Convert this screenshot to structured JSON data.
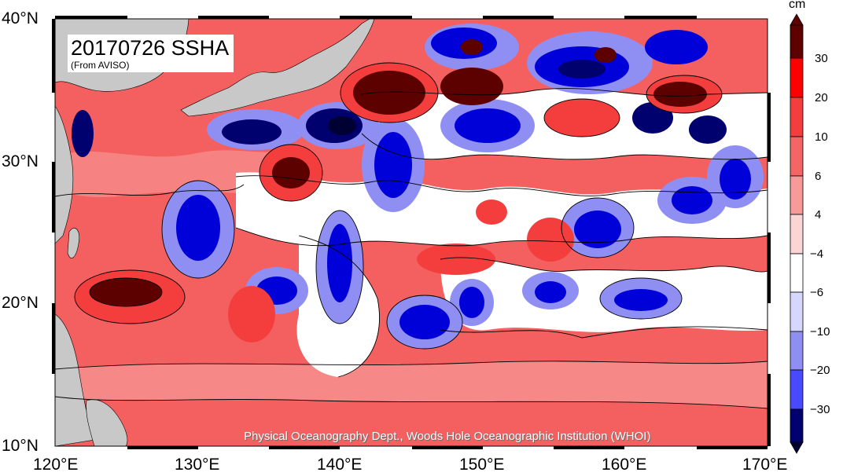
{
  "map": {
    "title": "20170726 SSHA",
    "source": "(From AVISO)",
    "credit": "Physical Oceanography Dept., Woods Hole Oceanographic Institution (WHOI)",
    "lat_labels": [
      "40°N",
      "30°N",
      "20°N",
      "10°N"
    ],
    "lon_labels": [
      "120°E",
      "130°E",
      "140°E",
      "150°E",
      "160°E",
      "170°E"
    ],
    "lon_range": [
      120,
      170
    ],
    "lat_range": [
      10,
      40
    ],
    "land_color": "#c8c8c8",
    "ocean_background_color": "#f46060"
  },
  "colorbar": {
    "unit": "cm",
    "tick_labels": [
      "30",
      "20",
      "10",
      "6",
      "4",
      "−4",
      "−6",
      "−10",
      "−20",
      "−30"
    ],
    "colors": [
      "#5c0000",
      "#ff0000",
      "#f43e3e",
      "#f46666",
      "#f69a9a",
      "#fbd4d4",
      "#ffffff",
      "#d6d6ff",
      "#8f8ff3",
      "#4949ff",
      "#0000d8",
      "#00006e",
      "#000033"
    ]
  }
}
